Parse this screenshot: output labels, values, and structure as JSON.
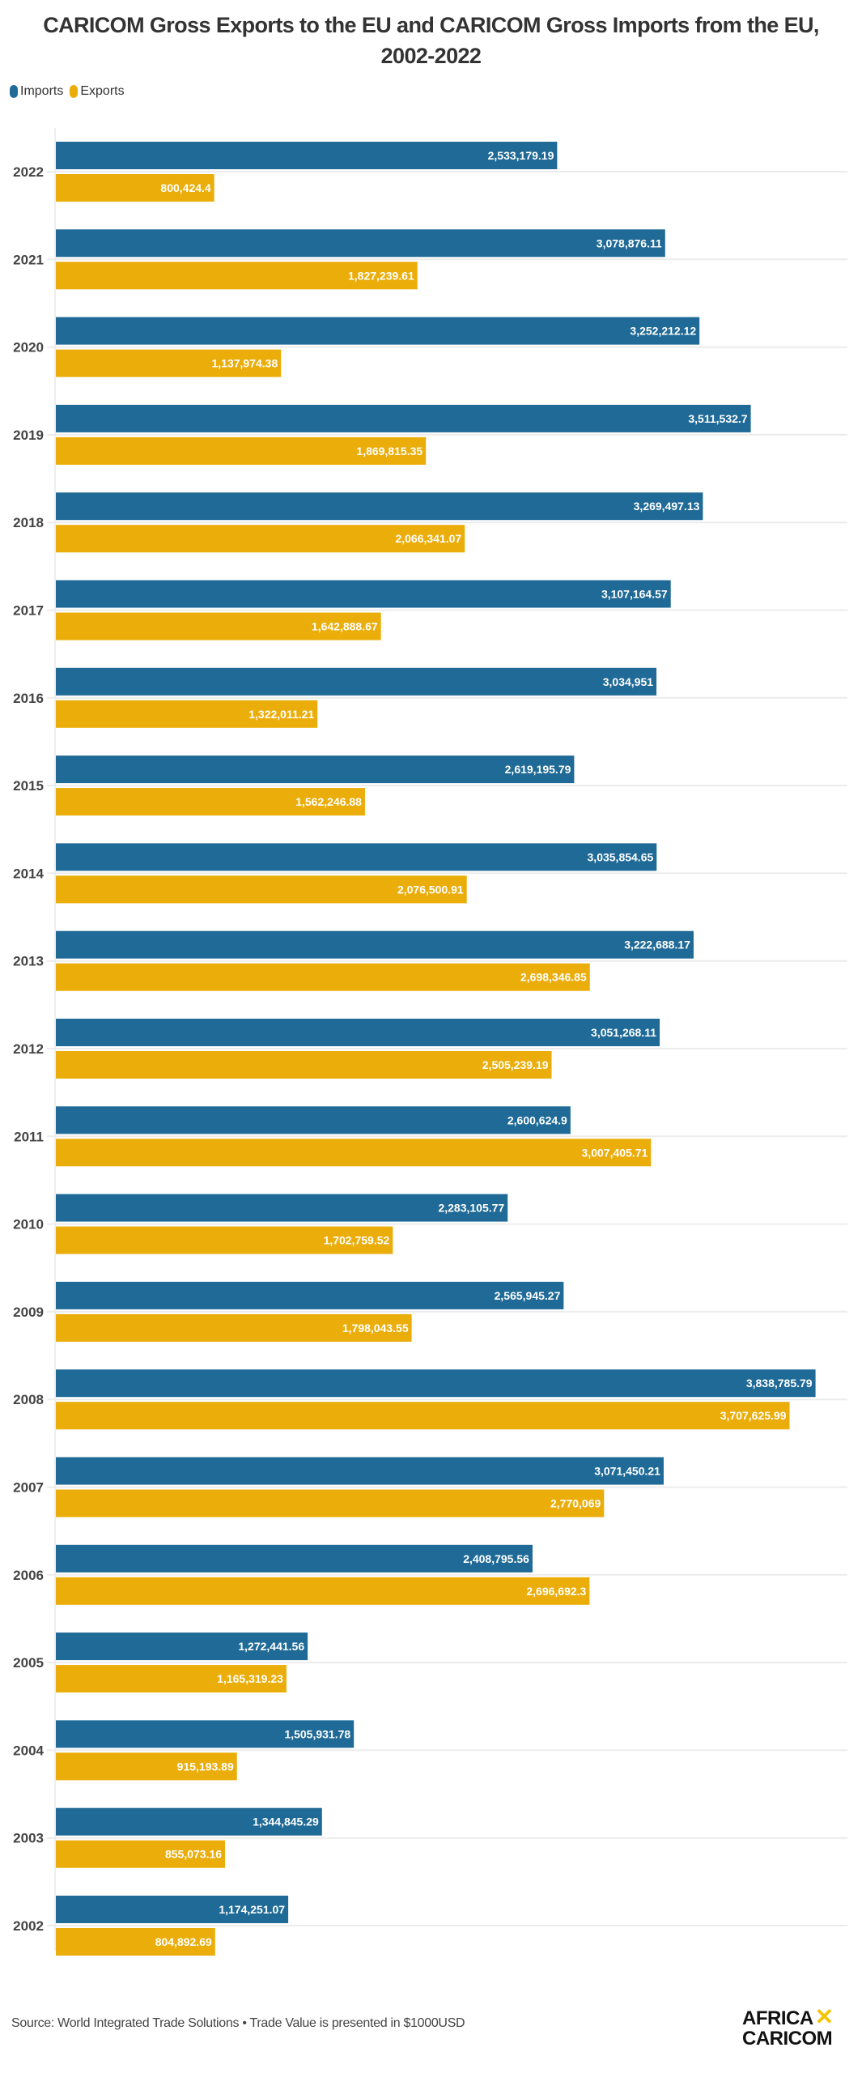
{
  "chart_data": {
    "type": "bar",
    "orientation": "horizontal",
    "title": "CARICOM Gross Exports to the EU and CARICOM Gross Imports from the EU, 2002-2022",
    "title_lines": [
      "CARICOM Gross Exports to the EU and CARICOM Gross Imports from the EU,",
      "2002-2022"
    ],
    "xlabel": "",
    "ylabel": "",
    "xlim": [
      0,
      4000000
    ],
    "grid": true,
    "legend_position": "top-left",
    "categories": [
      "2022",
      "2021",
      "2020",
      "2019",
      "2018",
      "2017",
      "2016",
      "2015",
      "2014",
      "2013",
      "2012",
      "2011",
      "2010",
      "2009",
      "2008",
      "2007",
      "2006",
      "2005",
      "2004",
      "2003",
      "2002"
    ],
    "series": [
      {
        "name": "Imports",
        "color": "#1f6a96",
        "values": [
          2533179.19,
          3078876.11,
          3252212.12,
          3511532.7,
          3269497.13,
          3107164.57,
          3034951,
          2619195.79,
          3035854.65,
          3222688.17,
          3051268.11,
          2600624.9,
          2283105.77,
          2565945.27,
          3838785.79,
          3071450.21,
          2408795.56,
          1272441.56,
          1505931.78,
          1344845.29,
          1174251.07
        ],
        "labels": [
          "2,533,179.19",
          "3,078,876.11",
          "3,252,212.12",
          "3,511,532.7",
          "3,269,497.13",
          "3,107,164.57",
          "3,034,951",
          "2,619,195.79",
          "3,035,854.65",
          "3,222,688.17",
          "3,051,268.11",
          "2,600,624.9",
          "2,283,105.77",
          "2,565,945.27",
          "3,838,785.79",
          "3,071,450.21",
          "2,408,795.56",
          "1,272,441.56",
          "1,505,931.78",
          "1,344,845.29",
          "1,174,251.07"
        ]
      },
      {
        "name": "Exports",
        "color": "#ebad0a",
        "values": [
          800424.4,
          1827239.61,
          1137974.38,
          1869815.35,
          2066341.07,
          1642888.67,
          1322011.21,
          1562246.88,
          2076500.91,
          2698346.85,
          2505239.19,
          3007405.71,
          1702759.52,
          1798043.55,
          3707625.99,
          2770069,
          2696692.3,
          1165319.23,
          915193.89,
          855073.16,
          804892.69
        ],
        "labels": [
          "800,424.4",
          "1,827,239.61",
          "1,137,974.38",
          "1,869,815.35",
          "2,066,341.07",
          "1,642,888.67",
          "1,322,011.21",
          "1,562,246.88",
          "2,076,500.91",
          "2,698,346.85",
          "2,505,239.19",
          "3,007,405.71",
          "1,702,759.52",
          "1,798,043.55",
          "3,707,625.99",
          "2,770,069",
          "2,696,692.3",
          "1,165,319.23",
          "915,193.89",
          "855,073.16",
          "804,892.69"
        ]
      }
    ]
  },
  "legend": {
    "imports_label": "Imports",
    "exports_label": "Exports"
  },
  "footer": {
    "source": "Source: World Integrated Trade Solutions • Trade Value is presented in $1000USD"
  },
  "logo": {
    "line1": "AFRICA",
    "mark": "✕",
    "line2": "CARICOM"
  }
}
